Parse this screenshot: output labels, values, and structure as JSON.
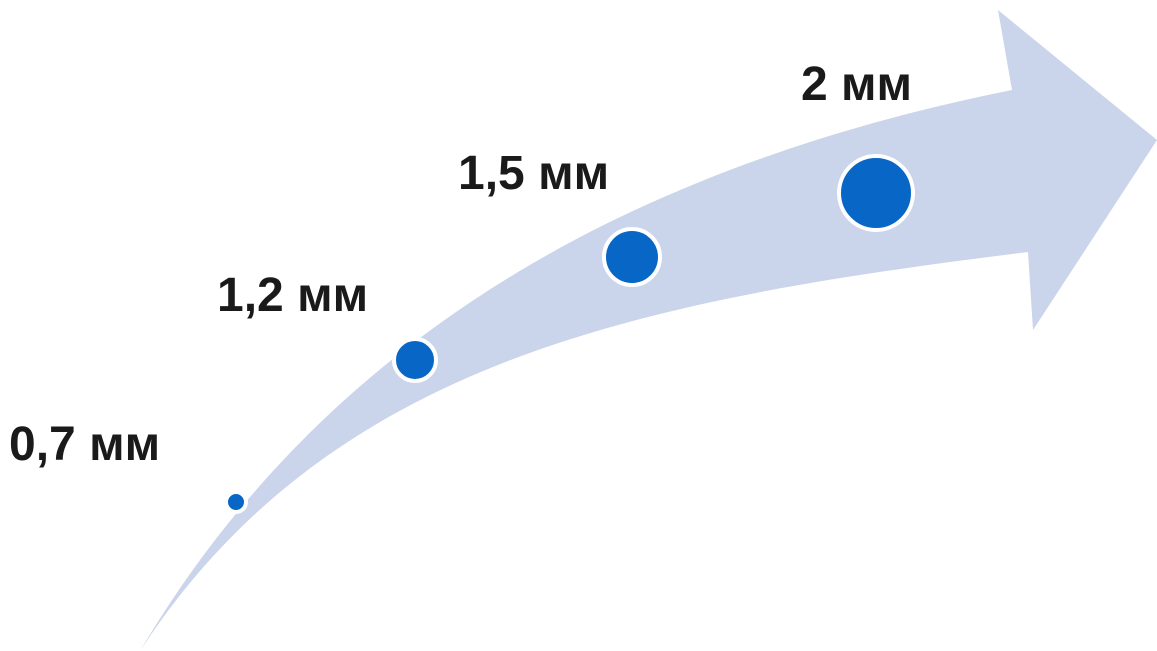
{
  "colors": {
    "arrow": "#cad4ea",
    "dot_fill": "#0866c6",
    "dot_outline": "#ffffff",
    "text": "#1a1a1a"
  },
  "steps": [
    {
      "label": "0,7 мм",
      "value_mm": 0.7
    },
    {
      "label": "1,2 мм",
      "value_mm": 1.2
    },
    {
      "label": "1,5 мм",
      "value_mm": 1.5
    },
    {
      "label": "2 мм",
      "value_mm": 2
    }
  ]
}
